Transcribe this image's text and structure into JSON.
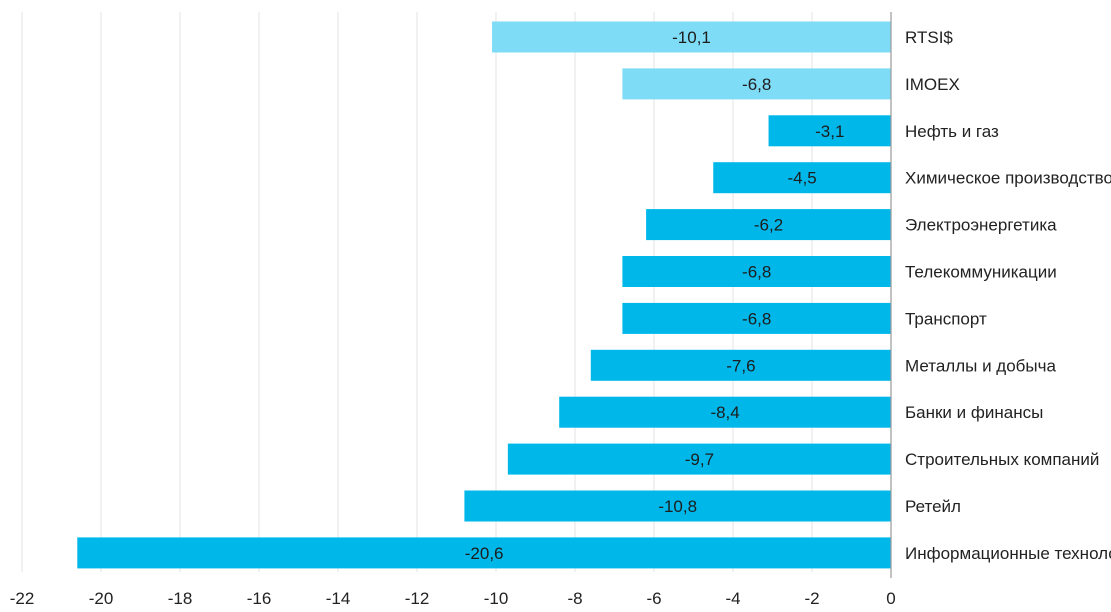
{
  "chart_data": {
    "type": "bar",
    "orientation": "horizontal",
    "categories": [
      "RTSI$",
      "IMOEX",
      "Нефть и газ",
      "Химическое производство",
      "Электроэнергетика",
      "Телекоммуникации",
      "Транспорт",
      "Металлы и добыча",
      "Банки и финансы",
      "Строительных компаний",
      "Ретейл",
      "Информационные технологии"
    ],
    "values": [
      -10.1,
      -6.8,
      -3.1,
      -4.5,
      -6.2,
      -6.8,
      -6.8,
      -7.6,
      -8.4,
      -9.7,
      -10.8,
      -20.6
    ],
    "value_labels": [
      "-10,1",
      "-6,8",
      "-3,1",
      "-4,5",
      "-6,2",
      "-6,8",
      "-6,8",
      "-7,6",
      "-8,4",
      "-9,7",
      "-10,8",
      "-20,6"
    ],
    "bar_colors": [
      "#7fdcf7",
      "#7fdcf7",
      "#00b7ea",
      "#00b7ea",
      "#00b7ea",
      "#00b7ea",
      "#00b7ea",
      "#00b7ea",
      "#00b7ea",
      "#00b7ea",
      "#00b7ea",
      "#00b7ea"
    ],
    "xlim": [
      -22,
      0
    ],
    "xticks": [
      -22,
      -20,
      -18,
      -16,
      -14,
      -12,
      -10,
      -8,
      -6,
      -4,
      -2,
      0
    ],
    "xtick_labels": [
      "-22",
      "-20",
      "-18",
      "-16",
      "-14",
      "-12",
      "-10",
      "-8",
      "-6",
      "-4",
      "-2",
      "0"
    ],
    "grid": true,
    "legend": "none",
    "title": "",
    "xlabel": "",
    "ylabel": ""
  }
}
